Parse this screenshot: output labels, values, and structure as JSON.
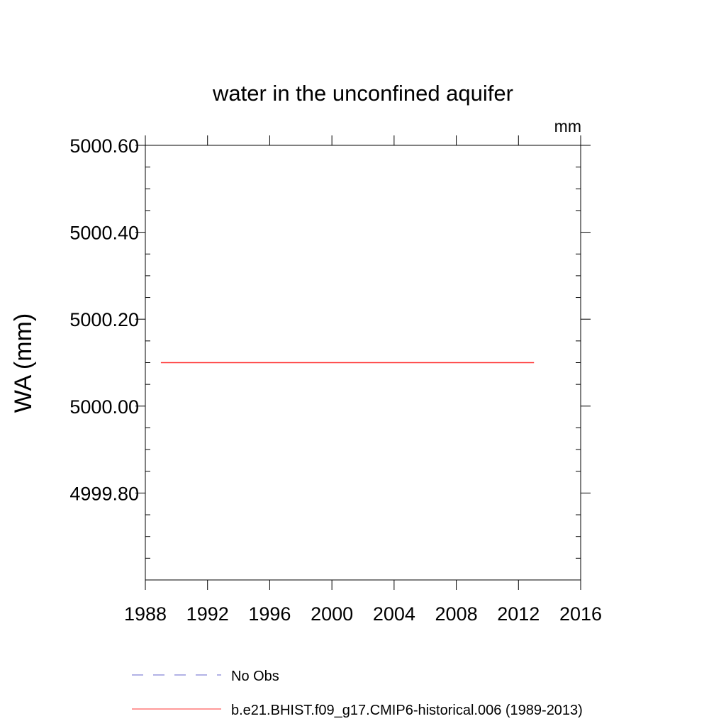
{
  "chart_data": {
    "type": "line",
    "title": "water in the unconfined aquifer",
    "units": "mm",
    "ylabel": "WA  (mm)",
    "xlabel": "",
    "xlim": [
      1988,
      2016
    ],
    "ylim": [
      4999.6,
      5000.6
    ],
    "x_ticks": [
      1988,
      1992,
      1996,
      2000,
      2004,
      2008,
      2012,
      2016
    ],
    "x_tick_labels": [
      "1988",
      "1992",
      "1996",
      "2000",
      "2004",
      "2008",
      "2012",
      "2016"
    ],
    "y_ticks": [
      4999.8,
      5000.0,
      5000.2,
      5000.4,
      5000.6
    ],
    "y_tick_labels": [
      "4999.80",
      "5000.00",
      "5000.20",
      "5000.40",
      "5000.60"
    ],
    "grid": false,
    "legend_position": "bottom",
    "series": [
      {
        "name": "No Obs",
        "color": "#6666cc",
        "dash": true,
        "x": [],
        "y": []
      },
      {
        "name": "b.e21.BHIST.f09_g17.CMIP6-historical.006 (1989-2013)",
        "color": "#ff3333",
        "dash": false,
        "x": [
          1989,
          2013
        ],
        "y": [
          5000.1,
          5000.1
        ]
      }
    ]
  }
}
